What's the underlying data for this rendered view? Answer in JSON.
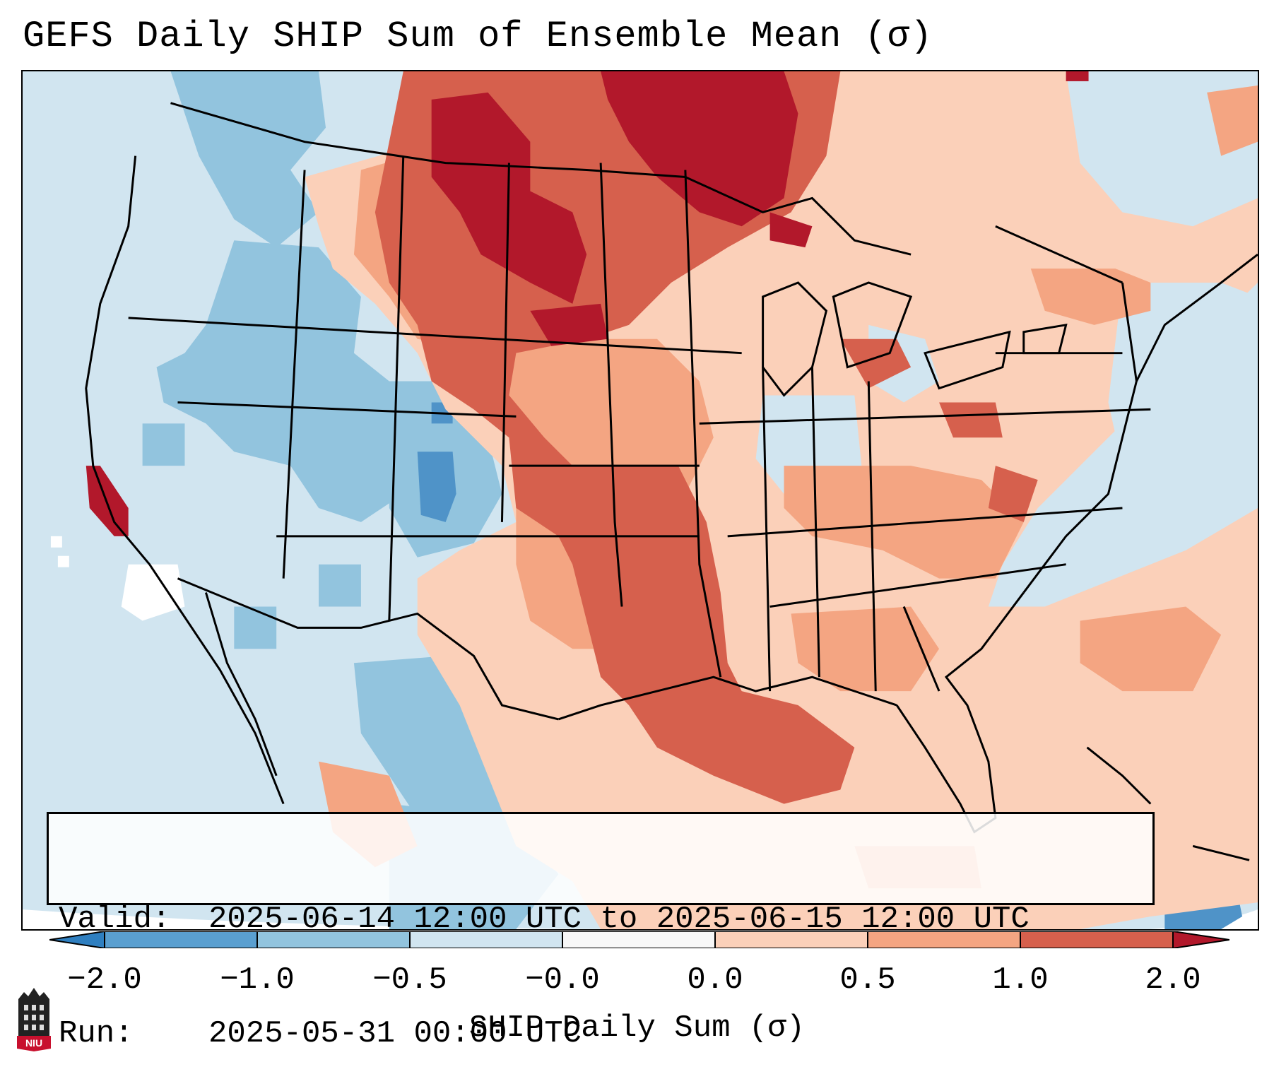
{
  "title": "GEFS Daily SHIP Sum of Ensemble Mean (σ)",
  "info": {
    "valid_label": "Valid:",
    "valid_value": "2025-06-14 12:00 UTC to 2025-06-15 12:00 UTC",
    "run_label": "Run:",
    "run_value": "2025-05-31 00:00 UTC"
  },
  "colorbar": {
    "title": "SHIP Daily Sum (σ)",
    "ticks": [
      "−2.0",
      "−1.0",
      "−0.5",
      "−0.0",
      "0.0",
      "0.5",
      "1.0",
      "2.0"
    ],
    "colors": [
      "#2f7fc0",
      "#5a9fd0",
      "#92c4de",
      "#d1e5f0",
      "#f7f7f7",
      "#fbd0b9",
      "#f4a582",
      "#d6604d",
      "#b2182b"
    ]
  },
  "logo": {
    "text": "NIU"
  },
  "map": {
    "region": "Contiguous United States, southern Canada, northern Mexico, Gulf of Mexico, Caribbean",
    "colors": {
      "very_low": "#2f7fc0",
      "low": "#92c4de",
      "slightly_low": "#d1e5f0",
      "neutral": "#f7f7f7",
      "slightly_high": "#fbd0b9",
      "high": "#f4a582",
      "higher": "#d6604d",
      "very_high": "#b2182b"
    }
  }
}
